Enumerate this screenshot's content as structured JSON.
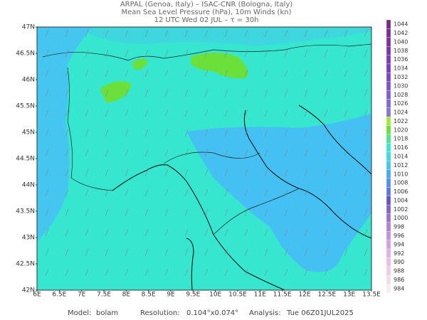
{
  "header": {
    "lines": [
      "ARPAL (Genoa, Italy)  –  ISAC-CNR (Bologna, Italy)",
      "Mean Sea Level Pressure (hPa), 10m Winds (kn)",
      "12 UTC Wed 02 JUL  –  τ = 30h"
    ]
  },
  "axes": {
    "lat": [
      "47N",
      "46.5N",
      "46N",
      "45.5N",
      "45N",
      "44.5N",
      "44N",
      "43.5N",
      "43N",
      "42.5N",
      "42N"
    ],
    "lon": [
      "6E",
      "6.5E",
      "7E",
      "7.5E",
      "8E",
      "8.5E",
      "9E",
      "9.5E",
      "10E",
      "10.5E",
      "11E",
      "11.5E",
      "12E",
      "12.5E",
      "13E",
      "13.5E"
    ]
  },
  "colorbar": {
    "labels": [
      "1044",
      "1042",
      "1040",
      "1038",
      "1036",
      "1034",
      "1032",
      "1030",
      "1028",
      "1026",
      "1024",
      "1022",
      "1020",
      "1018",
      "1016",
      "1014",
      "1012",
      "1010",
      "1008",
      "1006",
      "1004",
      "1002",
      "1000",
      "998",
      "996",
      "994",
      "992",
      "990",
      "988",
      "986",
      "984"
    ]
  },
  "footer": {
    "model_label": "Model:",
    "model": "bolam",
    "resolution_label": "Resolution:",
    "resolution": "0.104°x0.074°",
    "analysis_label": "Analysis:",
    "analysis": "Tue 06Z01JUL2025"
  }
}
